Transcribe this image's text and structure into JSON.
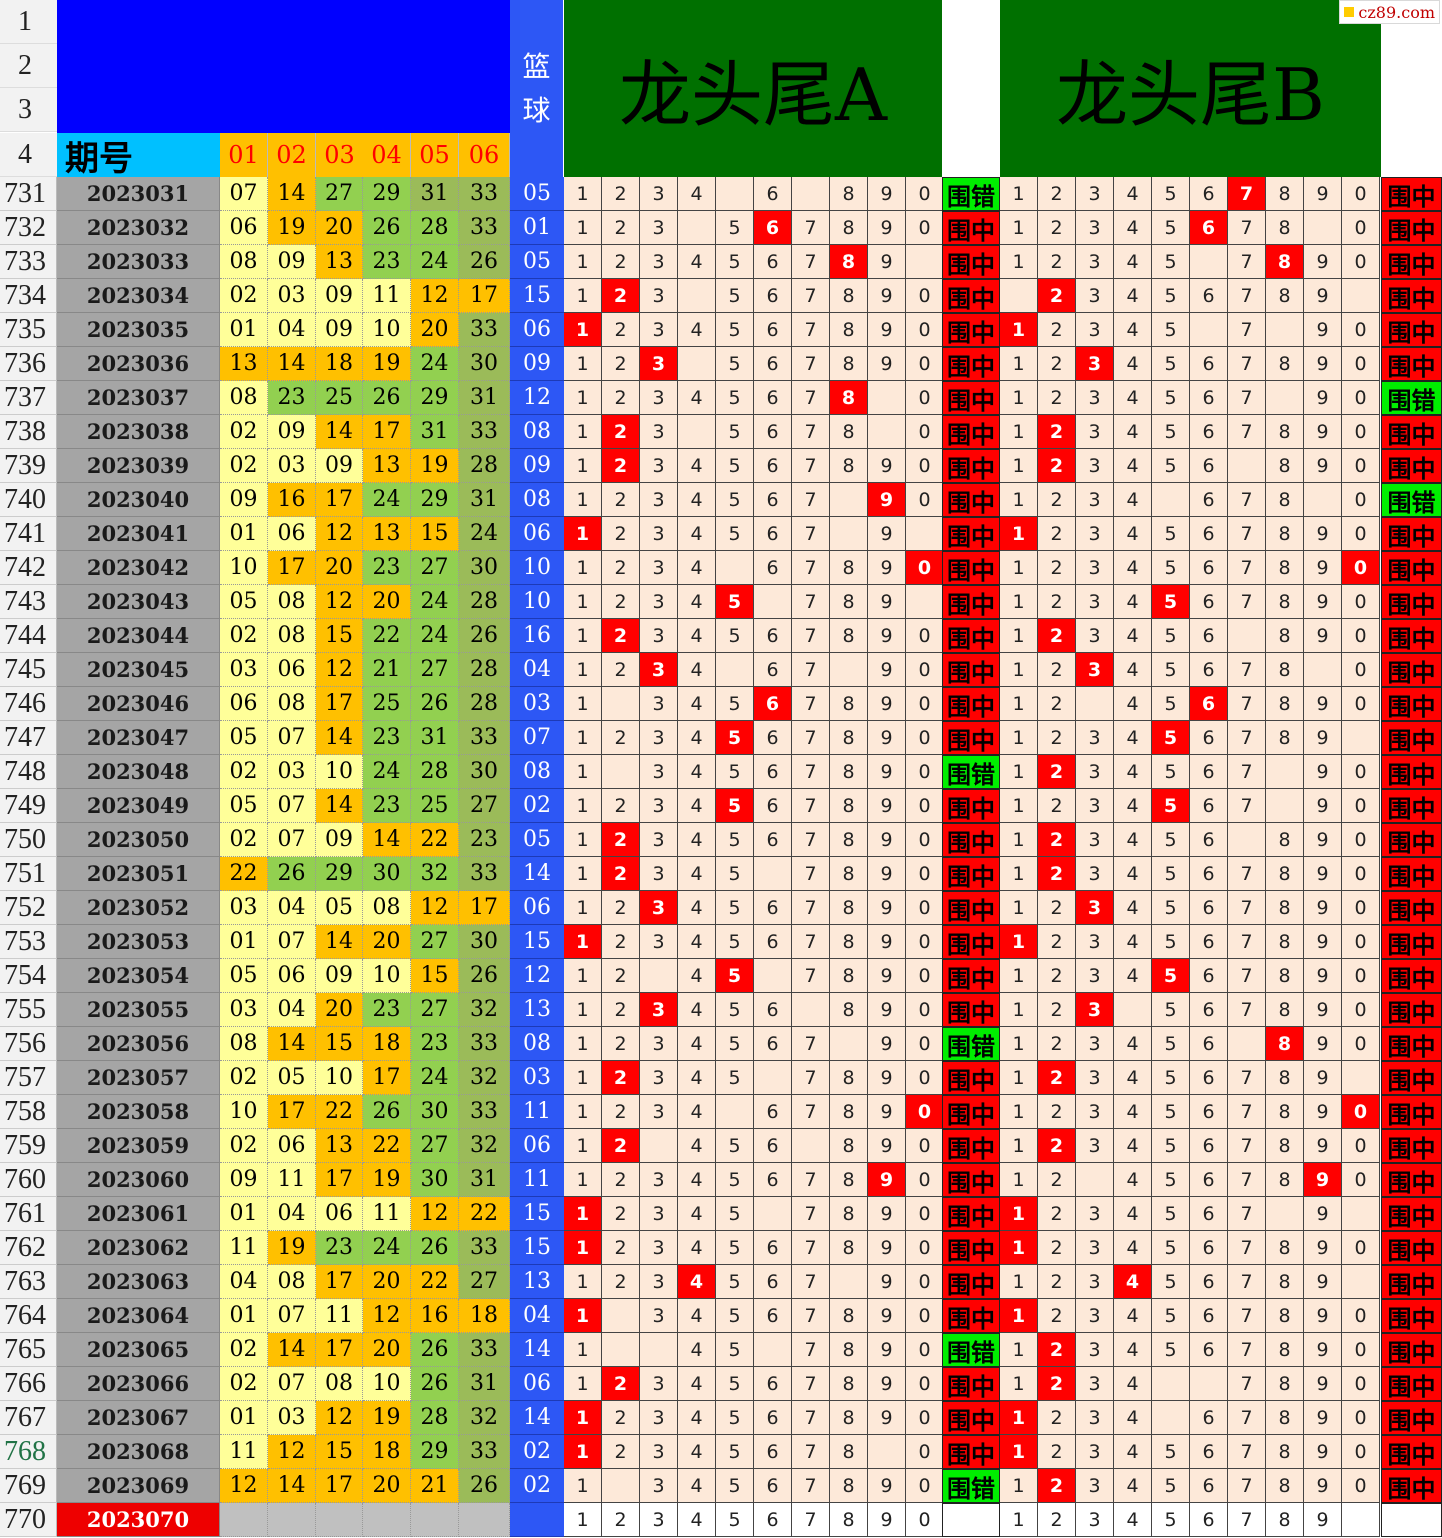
{
  "watermark": "cz89.com",
  "header": {
    "row_numbers": [
      "1",
      "2",
      "3",
      "4"
    ],
    "issue_label": "期号",
    "positions": [
      "01",
      "02",
      "03",
      "04",
      "05",
      "06"
    ],
    "blue_label_1": "篮",
    "blue_label_2": "球",
    "section_a_title": "龙头尾A",
    "section_b_title": "龙头尾B"
  },
  "colors": {
    "hit": "#ff0000",
    "win": "#ff0000",
    "miss": "#00ee00",
    "blue": "#2d57f5",
    "header_blue": "#0000ff",
    "banner": "#007000"
  },
  "rows": [
    {
      "n": "731",
      "issue": "2023031",
      "nums": [
        "07",
        "14",
        "27",
        "29",
        "31",
        "33"
      ],
      "c": "LYGGDD",
      "blue": "05",
      "a_miss": [
        5,
        7
      ],
      "a_hit": null,
      "a_res": "围错",
      "b_miss": [],
      "b_hit": 7,
      "b_res": "围中"
    },
    {
      "n": "732",
      "issue": "2023032",
      "nums": [
        "06",
        "19",
        "20",
        "26",
        "28",
        "33"
      ],
      "c": "LYYGGD",
      "blue": "01",
      "a_miss": [
        4
      ],
      "a_hit": 6,
      "a_res": "围中",
      "b_miss": [
        9
      ],
      "b_hit": 6,
      "b_res": "围中"
    },
    {
      "n": "733",
      "issue": "2023033",
      "nums": [
        "08",
        "09",
        "13",
        "23",
        "24",
        "26"
      ],
      "c": "LLYGGD",
      "blue": "05",
      "a_miss": [
        0
      ],
      "a_hit": 8,
      "a_res": "围中",
      "b_miss": [
        6
      ],
      "b_hit": 8,
      "b_res": "围中"
    },
    {
      "n": "734",
      "issue": "2023034",
      "nums": [
        "02",
        "03",
        "09",
        "11",
        "12",
        "17"
      ],
      "c": "LLLLYY",
      "blue": "15",
      "a_miss": [
        4
      ],
      "a_hit": 2,
      "a_res": "围中",
      "b_miss": [
        1,
        0
      ],
      "b_hit": 2,
      "b_res": "围中"
    },
    {
      "n": "735",
      "issue": "2023035",
      "nums": [
        "01",
        "04",
        "09",
        "10",
        "20",
        "33"
      ],
      "c": "LLLLYD",
      "blue": "06",
      "a_miss": [],
      "a_hit": 1,
      "a_res": "围中",
      "b_miss": [
        6,
        8
      ],
      "b_hit": 1,
      "b_res": "围中"
    },
    {
      "n": "736",
      "issue": "2023036",
      "nums": [
        "13",
        "14",
        "18",
        "19",
        "24",
        "30"
      ],
      "c": "YYYYGD",
      "blue": "09",
      "a_miss": [
        4
      ],
      "a_hit": 3,
      "a_res": "围中",
      "b_miss": [],
      "b_hit": 3,
      "b_res": "围中"
    },
    {
      "n": "737",
      "issue": "2023037",
      "nums": [
        "08",
        "23",
        "25",
        "26",
        "29",
        "31"
      ],
      "c": "LGGGGD",
      "blue": "12",
      "a_miss": [
        9
      ],
      "a_hit": 8,
      "a_res": "围中",
      "b_miss": [
        8
      ],
      "b_hit": null,
      "b_res": "围错"
    },
    {
      "n": "738",
      "issue": "2023038",
      "nums": [
        "02",
        "09",
        "14",
        "17",
        "31",
        "33"
      ],
      "c": "LLYYGD",
      "blue": "08",
      "a_miss": [
        4,
        9
      ],
      "a_hit": 2,
      "a_res": "围中",
      "b_miss": [],
      "b_hit": 2,
      "b_res": "围中"
    },
    {
      "n": "739",
      "issue": "2023039",
      "nums": [
        "02",
        "03",
        "09",
        "13",
        "19",
        "28"
      ],
      "c": "LLLYYD",
      "blue": "09",
      "a_miss": [],
      "a_hit": 2,
      "a_res": "围中",
      "b_miss": [
        7
      ],
      "b_hit": 2,
      "b_res": "围中"
    },
    {
      "n": "740",
      "issue": "2023040",
      "nums": [
        "09",
        "16",
        "17",
        "24",
        "29",
        "31"
      ],
      "c": "LYYGGD",
      "blue": "08",
      "a_miss": [
        8
      ],
      "a_hit": 9,
      "a_res": "围中",
      "b_miss": [
        5,
        9
      ],
      "b_hit": null,
      "b_res": "围错"
    },
    {
      "n": "741",
      "issue": "2023041",
      "nums": [
        "01",
        "06",
        "12",
        "13",
        "15",
        "24"
      ],
      "c": "LLYYYD",
      "blue": "06",
      "a_miss": [
        8,
        0
      ],
      "a_hit": 1,
      "a_res": "围中",
      "b_miss": [],
      "b_hit": 1,
      "b_res": "围中"
    },
    {
      "n": "742",
      "issue": "2023042",
      "nums": [
        "10",
        "17",
        "20",
        "23",
        "27",
        "30"
      ],
      "c": "LYYGGD",
      "blue": "10",
      "a_miss": [
        5
      ],
      "a_hit": 0,
      "a_res": "围中",
      "b_miss": [],
      "b_hit": 0,
      "b_res": "围中"
    },
    {
      "n": "743",
      "issue": "2023043",
      "nums": [
        "05",
        "08",
        "12",
        "20",
        "24",
        "28"
      ],
      "c": "LLYYGD",
      "blue": "10",
      "a_miss": [
        6,
        0
      ],
      "a_hit": 5,
      "a_res": "围中",
      "b_miss": [],
      "b_hit": 5,
      "b_res": "围中"
    },
    {
      "n": "744",
      "issue": "2023044",
      "nums": [
        "02",
        "08",
        "15",
        "22",
        "24",
        "26"
      ],
      "c": "LLYGGD",
      "blue": "16",
      "a_miss": [],
      "a_hit": 2,
      "a_res": "围中",
      "b_miss": [
        7
      ],
      "b_hit": 2,
      "b_res": "围中"
    },
    {
      "n": "745",
      "issue": "2023045",
      "nums": [
        "03",
        "06",
        "12",
        "21",
        "27",
        "28"
      ],
      "c": "LLYGGD",
      "blue": "04",
      "a_miss": [
        5,
        8
      ],
      "a_hit": 3,
      "a_res": "围中",
      "b_miss": [
        9
      ],
      "b_hit": 3,
      "b_res": "围中"
    },
    {
      "n": "746",
      "issue": "2023046",
      "nums": [
        "06",
        "08",
        "17",
        "25",
        "26",
        "28"
      ],
      "c": "LLYGGD",
      "blue": "03",
      "a_miss": [
        2
      ],
      "a_hit": 6,
      "a_res": "围中",
      "b_miss": [
        3
      ],
      "b_hit": 6,
      "b_res": "围中"
    },
    {
      "n": "747",
      "issue": "2023047",
      "nums": [
        "05",
        "07",
        "14",
        "23",
        "31",
        "33"
      ],
      "c": "LLYGGD",
      "blue": "07",
      "a_miss": [],
      "a_hit": 5,
      "a_res": "围中",
      "b_miss": [
        0
      ],
      "b_hit": 5,
      "b_res": "围中"
    },
    {
      "n": "748",
      "issue": "2023048",
      "nums": [
        "02",
        "03",
        "10",
        "24",
        "28",
        "30"
      ],
      "c": "LLLGGD",
      "blue": "08",
      "a_miss": [
        2
      ],
      "a_hit": null,
      "a_res": "围错",
      "b_miss": [
        8
      ],
      "b_hit": 2,
      "b_res": "围中"
    },
    {
      "n": "749",
      "issue": "2023049",
      "nums": [
        "05",
        "07",
        "14",
        "23",
        "25",
        "27"
      ],
      "c": "LLYGGD",
      "blue": "02",
      "a_miss": [],
      "a_hit": 5,
      "a_res": "围中",
      "b_miss": [
        8
      ],
      "b_hit": 5,
      "b_res": "围中"
    },
    {
      "n": "750",
      "issue": "2023050",
      "nums": [
        "02",
        "07",
        "09",
        "14",
        "22",
        "23"
      ],
      "c": "LLLYYD",
      "blue": "05",
      "a_miss": [],
      "a_hit": 2,
      "a_res": "围中",
      "b_miss": [
        7
      ],
      "b_hit": 2,
      "b_res": "围中"
    },
    {
      "n": "751",
      "issue": "2023051",
      "nums": [
        "22",
        "26",
        "29",
        "30",
        "32",
        "33"
      ],
      "c": "YGGGGD",
      "blue": "14",
      "a_miss": [
        6
      ],
      "a_hit": 2,
      "a_res": "围中",
      "b_miss": [],
      "b_hit": 2,
      "b_res": "围中"
    },
    {
      "n": "752",
      "issue": "2023052",
      "nums": [
        "03",
        "04",
        "05",
        "08",
        "12",
        "17"
      ],
      "c": "LLLLYY",
      "blue": "06",
      "a_miss": [],
      "a_hit": 3,
      "a_res": "围中",
      "b_miss": [],
      "b_hit": 3,
      "b_res": "围中"
    },
    {
      "n": "753",
      "issue": "2023053",
      "nums": [
        "01",
        "07",
        "14",
        "20",
        "27",
        "30"
      ],
      "c": "LLYYGD",
      "blue": "15",
      "a_miss": [],
      "a_hit": 1,
      "a_res": "围中",
      "b_miss": [],
      "b_hit": 1,
      "b_res": "围中"
    },
    {
      "n": "754",
      "issue": "2023054",
      "nums": [
        "05",
        "06",
        "09",
        "10",
        "15",
        "26"
      ],
      "c": "LLLLYD",
      "blue": "12",
      "a_miss": [
        3,
        6
      ],
      "a_hit": 5,
      "a_res": "围中",
      "b_miss": [],
      "b_hit": 5,
      "b_res": "围中"
    },
    {
      "n": "755",
      "issue": "2023055",
      "nums": [
        "03",
        "04",
        "20",
        "23",
        "27",
        "32"
      ],
      "c": "LLYGGD",
      "blue": "13",
      "a_miss": [
        7
      ],
      "a_hit": 3,
      "a_res": "围中",
      "b_miss": [
        4
      ],
      "b_hit": 3,
      "b_res": "围中"
    },
    {
      "n": "756",
      "issue": "2023056",
      "nums": [
        "08",
        "14",
        "15",
        "18",
        "23",
        "33"
      ],
      "c": "LYYYGD",
      "blue": "08",
      "a_miss": [
        8
      ],
      "a_hit": null,
      "a_res": "围错",
      "b_miss": [
        7
      ],
      "b_hit": 8,
      "b_res": "围中"
    },
    {
      "n": "757",
      "issue": "2023057",
      "nums": [
        "02",
        "05",
        "10",
        "17",
        "24",
        "32"
      ],
      "c": "LLLYGD",
      "blue": "03",
      "a_miss": [
        6
      ],
      "a_hit": 2,
      "a_res": "围中",
      "b_miss": [
        0
      ],
      "b_hit": 2,
      "b_res": "围中"
    },
    {
      "n": "758",
      "issue": "2023058",
      "nums": [
        "10",
        "17",
        "22",
        "26",
        "30",
        "33"
      ],
      "c": "LYYGGD",
      "blue": "11",
      "a_miss": [
        5
      ],
      "a_hit": 0,
      "a_res": "围中",
      "b_miss": [],
      "b_hit": 0,
      "b_res": "围中"
    },
    {
      "n": "759",
      "issue": "2023059",
      "nums": [
        "02",
        "06",
        "13",
        "22",
        "27",
        "32"
      ],
      "c": "LLYYGD",
      "blue": "06",
      "a_miss": [
        3,
        7
      ],
      "a_hit": 2,
      "a_res": "围中",
      "b_miss": [],
      "b_hit": 2,
      "b_res": "围中"
    },
    {
      "n": "760",
      "issue": "2023060",
      "nums": [
        "09",
        "11",
        "17",
        "19",
        "30",
        "31"
      ],
      "c": "LLYYGD",
      "blue": "11",
      "a_miss": [],
      "a_hit": 9,
      "a_res": "围中",
      "b_miss": [
        3
      ],
      "b_hit": 9,
      "b_res": "围中"
    },
    {
      "n": "761",
      "issue": "2023061",
      "nums": [
        "01",
        "04",
        "06",
        "11",
        "12",
        "22"
      ],
      "c": "LLLLYY",
      "blue": "15",
      "a_miss": [
        6
      ],
      "a_hit": 1,
      "a_res": "围中",
      "b_miss": [
        8,
        0
      ],
      "b_hit": 1,
      "b_res": "围中"
    },
    {
      "n": "762",
      "issue": "2023062",
      "nums": [
        "11",
        "19",
        "23",
        "24",
        "26",
        "33"
      ],
      "c": "LYGGGD",
      "blue": "15",
      "a_miss": [],
      "a_hit": 1,
      "a_res": "围中",
      "b_miss": [],
      "b_hit": 1,
      "b_res": "围中"
    },
    {
      "n": "763",
      "issue": "2023063",
      "nums": [
        "04",
        "08",
        "17",
        "20",
        "22",
        "27"
      ],
      "c": "LLYYYD",
      "blue": "13",
      "a_miss": [
        8
      ],
      "a_hit": 4,
      "a_res": "围中",
      "b_miss": [
        0
      ],
      "b_hit": 4,
      "b_res": "围中"
    },
    {
      "n": "764",
      "issue": "2023064",
      "nums": [
        "01",
        "07",
        "11",
        "12",
        "16",
        "18"
      ],
      "c": "LLLYYY",
      "blue": "04",
      "a_miss": [
        2
      ],
      "a_hit": 1,
      "a_res": "围中",
      "b_miss": [],
      "b_hit": 1,
      "b_res": "围中"
    },
    {
      "n": "765",
      "issue": "2023065",
      "nums": [
        "02",
        "14",
        "17",
        "20",
        "26",
        "33"
      ],
      "c": "LYYYGD",
      "blue": "14",
      "a_miss": [
        2,
        3,
        6
      ],
      "a_hit": null,
      "a_res": "围错",
      "b_miss": [],
      "b_hit": 2,
      "b_res": "围中"
    },
    {
      "n": "766",
      "issue": "2023066",
      "nums": [
        "02",
        "07",
        "08",
        "10",
        "26",
        "31"
      ],
      "c": "LLLLGD",
      "blue": "06",
      "a_miss": [],
      "a_hit": 2,
      "a_res": "围中",
      "b_miss": [
        5,
        6
      ],
      "b_hit": 2,
      "b_res": "围中"
    },
    {
      "n": "767",
      "issue": "2023067",
      "nums": [
        "01",
        "03",
        "12",
        "19",
        "28",
        "32"
      ],
      "c": "LLYYGD",
      "blue": "14",
      "a_miss": [],
      "a_hit": 1,
      "a_res": "围中",
      "b_miss": [
        5
      ],
      "b_hit": 1,
      "b_res": "围中"
    },
    {
      "n": "768",
      "issue": "2023068",
      "nums": [
        "11",
        "12",
        "15",
        "18",
        "29",
        "33"
      ],
      "c": "LYYYGD",
      "blue": "02",
      "a_miss": [
        9
      ],
      "a_hit": 1,
      "a_res": "围中",
      "b_miss": [],
      "b_hit": 1,
      "b_res": "围中"
    },
    {
      "n": "769",
      "issue": "2023069",
      "nums": [
        "12",
        "14",
        "17",
        "20",
        "21",
        "26"
      ],
      "c": "YYYYYD",
      "blue": "02",
      "a_miss": [
        2
      ],
      "a_hit": null,
      "a_res": "围错",
      "b_miss": [],
      "b_hit": 2,
      "b_res": "围中"
    }
  ],
  "last_row": {
    "n": "770",
    "issue": "2023070",
    "a_digits": [
      "1",
      "2",
      "3",
      "4",
      "5",
      "6",
      "7",
      "8",
      "9",
      "0"
    ],
    "b_digits": [
      "1",
      "2",
      "3",
      "4",
      "5",
      "6",
      "7",
      "8",
      "9"
    ]
  },
  "digits": [
    "1",
    "2",
    "3",
    "4",
    "5",
    "6",
    "7",
    "8",
    "9",
    "0"
  ]
}
